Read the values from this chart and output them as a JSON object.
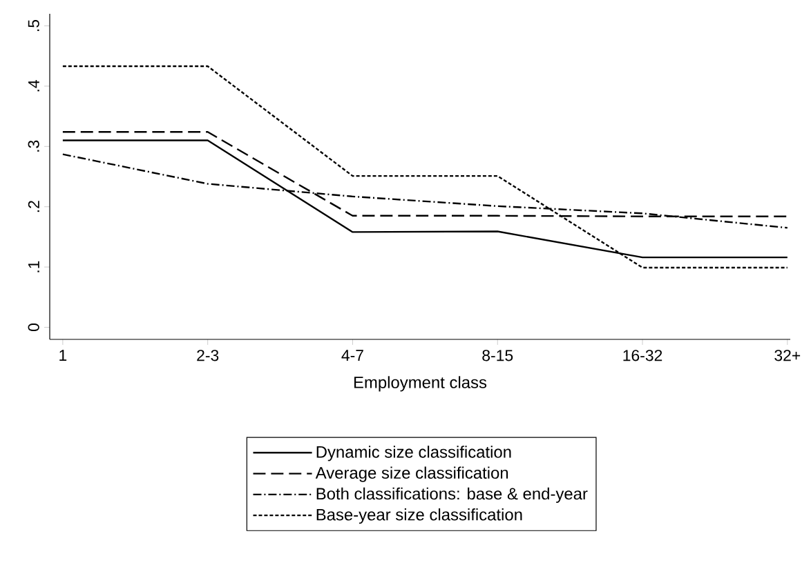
{
  "chart_data": {
    "type": "line",
    "xlabel": "Employment class",
    "categories": [
      "1",
      "2-3",
      "4-7",
      "8-15",
      "16-32",
      "32+"
    ],
    "series": [
      {
        "name": "Dynamic size classification",
        "color": "#000000",
        "line_style": "solid",
        "values": [
          0.31,
          0.31,
          0.158,
          0.159,
          0.116,
          0.116
        ]
      },
      {
        "name": "Average size classification",
        "color": "#000000",
        "line_style": "dashed",
        "values": [
          0.324,
          0.324,
          0.185,
          0.185,
          0.184,
          0.184
        ]
      },
      {
        "name": "Both classifications: base & end-year",
        "color": "#000000",
        "line_style": "dashdot",
        "values": [
          0.287,
          0.238,
          0.217,
          0.201,
          0.189,
          0.165
        ]
      },
      {
        "name": "Base-year size classification",
        "color": "#000000",
        "line_style": "dotted",
        "values": [
          0.433,
          0.433,
          0.251,
          0.251,
          0.099,
          0.099
        ]
      }
    ],
    "ylim": [
      -0.02,
      0.52
    ],
    "yticks": [
      {
        "value": 0,
        "label": "0"
      },
      {
        "value": 0.1,
        "label": ".1"
      },
      {
        "value": 0.2,
        "label": ".2"
      },
      {
        "value": 0.3,
        "label": ".3"
      },
      {
        "value": 0.4,
        "label": ".4"
      },
      {
        "value": 0.5,
        "label": ".5"
      }
    ],
    "legend": "bottom",
    "grid": false,
    "marker": "none"
  }
}
